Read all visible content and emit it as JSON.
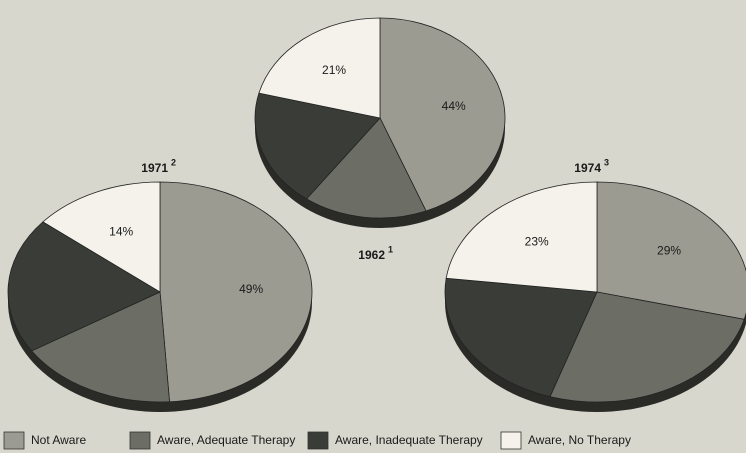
{
  "chart_data": [
    {
      "type": "pie",
      "title": "1962",
      "footnote": "1",
      "categories": [
        "Not Aware",
        "Aware, Adequate Therapy",
        "Aware, Inadequate Therapy",
        "Aware, No Therapy"
      ],
      "values": [
        44,
        16,
        19,
        21
      ],
      "value_labels": [
        "44%",
        null,
        null,
        "21%"
      ],
      "colors": [
        "#9c9b92",
        "#6c6e66",
        "#3a3d37",
        "#f4f2ea"
      ]
    },
    {
      "type": "pie",
      "title": "1971",
      "footnote": "2",
      "categories": [
        "Not Aware",
        "Aware, Adequate Therapy",
        "Aware, Inadequate Therapy",
        "Aware, No Therapy"
      ],
      "values": [
        49,
        17,
        20,
        14
      ],
      "value_labels": [
        "49%",
        null,
        null,
        "14%"
      ],
      "colors": [
        "#9c9b92",
        "#6c6e66",
        "#3a3d37",
        "#f4f2ea"
      ]
    },
    {
      "type": "pie",
      "title": "1974",
      "footnote": "3",
      "categories": [
        "Not Aware",
        "Aware, Adequate Therapy",
        "Aware, Inadequate Therapy",
        "Aware, No Therapy"
      ],
      "values": [
        29,
        26,
        22,
        23
      ],
      "value_labels": [
        "29%",
        null,
        null,
        "23%"
      ],
      "colors": [
        "#9c9b92",
        "#6c6e66",
        "#3a3d37",
        "#f4f2ea"
      ]
    }
  ]
}
